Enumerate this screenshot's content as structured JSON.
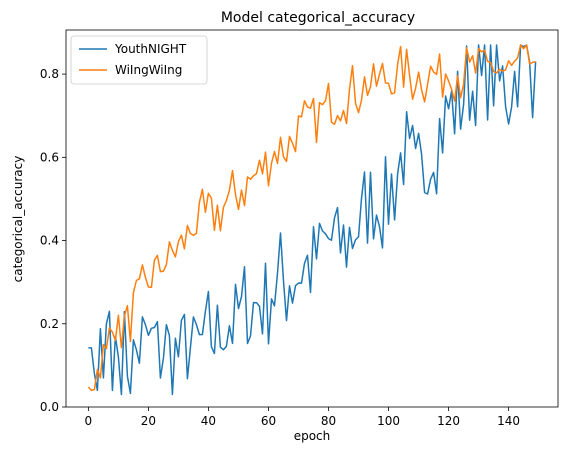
{
  "chart_data": {
    "type": "line",
    "title": "Model categorical_accuracy",
    "xlabel": "epoch",
    "ylabel": "categorical_accuracy",
    "xlim": [
      -7.45,
      156.45
    ],
    "ylim": [
      0.0,
      0.906
    ],
    "xticks": [
      0,
      20,
      40,
      60,
      80,
      100,
      120,
      140
    ],
    "yticks": [
      0.0,
      0.2,
      0.4,
      0.6,
      0.8
    ],
    "ytick_labels": [
      "0.0",
      "0.2",
      "0.4",
      "0.6",
      "0.8"
    ],
    "grid": false,
    "legend_position": "top-left",
    "series": [
      {
        "name": "YouthNIGHT",
        "color": "#1f77b4",
        "y_every_5_epochs": [
          0.14,
          0.19,
          0.1,
          0.12,
          0.16,
          0.14,
          0.13,
          0.14,
          0.16,
          0.2,
          0.22,
          0.24,
          0.28,
          0.3,
          0.32,
          0.36,
          0.4,
          0.4,
          0.44,
          0.48,
          0.52,
          0.6,
          0.54,
          0.64,
          0.72,
          0.75,
          0.77,
          0.78,
          0.76,
          0.83
        ],
        "y_start": [
          0.142,
          0.142,
          0.08,
          0.04,
          0.188,
          0.07,
          0.2,
          0.23,
          0.04,
          0.17,
          0.12
        ]
      },
      {
        "name": "WiIngWiIng",
        "color": "#ff7f0e",
        "y_every_5_epochs": [
          0.05,
          0.11,
          0.16,
          0.24,
          0.3,
          0.35,
          0.38,
          0.44,
          0.46,
          0.48,
          0.52,
          0.55,
          0.6,
          0.62,
          0.66,
          0.7,
          0.72,
          0.75,
          0.76,
          0.78,
          0.79,
          0.8,
          0.79,
          0.8,
          0.81,
          0.8,
          0.81,
          0.82,
          0.8,
          0.83
        ],
        "y_start": [
          0.048,
          0.04,
          0.042,
          0.09,
          0.07,
          0.15,
          0.14,
          0.19,
          0.18,
          0.16
        ]
      }
    ]
  }
}
